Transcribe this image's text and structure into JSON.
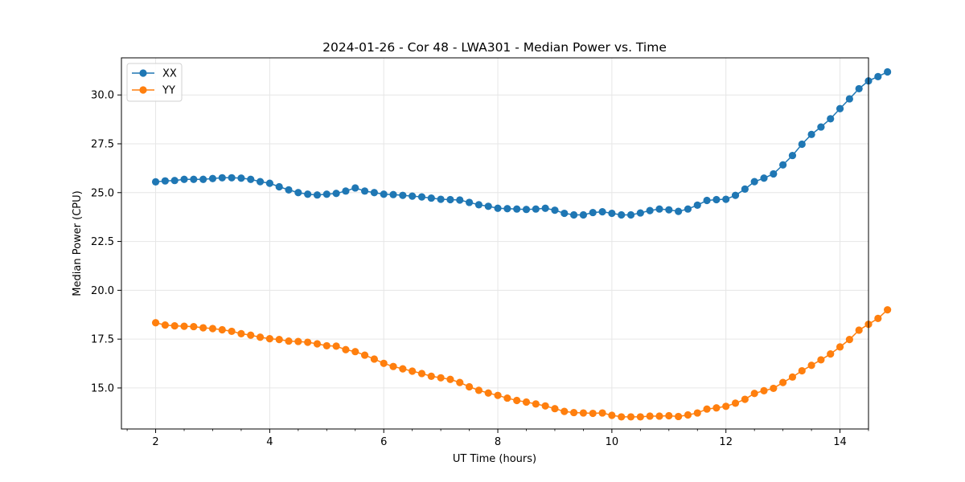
{
  "chart_data": {
    "type": "line",
    "title": "2024-01-26 - Cor 48 - LWA301 - Median Power vs. Time",
    "xlabel": "UT Time (hours)",
    "ylabel": "Median Power (CPU)",
    "xlim": [
      1.4,
      14.5
    ],
    "ylim": [
      12.9,
      31.9
    ],
    "xticks": [
      2,
      4,
      6,
      8,
      10,
      12,
      14
    ],
    "yticks": [
      15.0,
      17.5,
      20.0,
      22.5,
      25.0,
      27.5,
      30.0
    ],
    "xtick_labels": [
      "2",
      "4",
      "6",
      "8",
      "10",
      "12",
      "14"
    ],
    "ytick_labels": [
      "15.0",
      "17.5",
      "20.0",
      "22.5",
      "25.0",
      "27.5",
      "30.0"
    ],
    "grid": true,
    "legend_position": "top-left",
    "x": [
      2.0,
      2.1667,
      2.3333,
      2.5,
      2.6667,
      2.8333,
      3.0,
      3.1667,
      3.3333,
      3.5,
      3.6667,
      3.8333,
      4.0,
      4.1667,
      4.3333,
      4.5,
      4.6667,
      4.8333,
      5.0,
      5.1667,
      5.3333,
      5.5,
      5.6667,
      5.8333,
      6.0,
      6.1667,
      6.3333,
      6.5,
      6.6667,
      6.8333,
      7.0,
      7.1667,
      7.3333,
      7.5,
      7.6667,
      7.8333,
      8.0,
      8.1667,
      8.3333,
      8.5,
      8.6667,
      8.8333,
      9.0,
      9.1667,
      9.3333,
      9.5,
      9.6667,
      9.8333,
      10.0,
      10.1667,
      10.3333,
      10.5,
      10.6667,
      10.8333,
      11.0,
      11.1667,
      11.3333,
      11.5,
      11.6667,
      11.8333,
      12.0,
      12.1667,
      12.3333,
      12.5,
      12.6667,
      12.8333,
      13.0,
      13.1667,
      13.3333,
      13.5,
      13.6667,
      13.8333,
      14.0,
      14.1667,
      14.3333,
      14.5,
      14.6667,
      14.8333
    ],
    "series": [
      {
        "name": "XX",
        "color": "#1f77b4",
        "values": [
          25.55,
          25.6,
          25.62,
          25.68,
          25.68,
          25.68,
          25.72,
          25.76,
          25.76,
          25.74,
          25.68,
          25.56,
          25.48,
          25.3,
          25.14,
          25.0,
          24.92,
          24.88,
          24.92,
          24.96,
          25.08,
          25.24,
          25.08,
          25.0,
          24.92,
          24.9,
          24.86,
          24.82,
          24.78,
          24.72,
          24.66,
          24.64,
          24.62,
          24.5,
          24.38,
          24.3,
          24.2,
          24.18,
          24.16,
          24.14,
          24.16,
          24.2,
          24.1,
          23.94,
          23.86,
          23.86,
          23.98,
          24.02,
          23.94,
          23.86,
          23.86,
          23.96,
          24.08,
          24.16,
          24.12,
          24.04,
          24.16,
          24.36,
          24.6,
          24.64,
          24.66,
          24.86,
          25.18,
          25.56,
          25.74,
          25.96,
          26.42,
          26.9,
          27.48,
          27.98,
          28.36,
          28.78,
          29.3,
          29.8,
          30.32,
          30.72,
          30.94,
          31.18
        ]
      },
      {
        "name": "YY",
        "color": "#ff7f0e",
        "values": [
          18.34,
          18.22,
          18.18,
          18.16,
          18.14,
          18.08,
          18.04,
          17.98,
          17.9,
          17.78,
          17.7,
          17.6,
          17.52,
          17.48,
          17.4,
          17.38,
          17.34,
          17.26,
          17.16,
          17.14,
          16.96,
          16.86,
          16.68,
          16.48,
          16.26,
          16.1,
          15.98,
          15.86,
          15.74,
          15.6,
          15.52,
          15.44,
          15.28,
          15.06,
          14.88,
          14.74,
          14.62,
          14.48,
          14.36,
          14.28,
          14.18,
          14.08,
          13.94,
          13.8,
          13.74,
          13.72,
          13.7,
          13.72,
          13.6,
          13.52,
          13.52,
          13.52,
          13.56,
          13.56,
          13.58,
          13.54,
          13.62,
          13.72,
          13.92,
          13.98,
          14.06,
          14.22,
          14.42,
          14.72,
          14.86,
          14.98,
          15.28,
          15.56,
          15.88,
          16.16,
          16.44,
          16.74,
          17.1,
          17.48,
          17.96,
          18.26,
          18.56,
          19.0
        ]
      }
    ]
  }
}
